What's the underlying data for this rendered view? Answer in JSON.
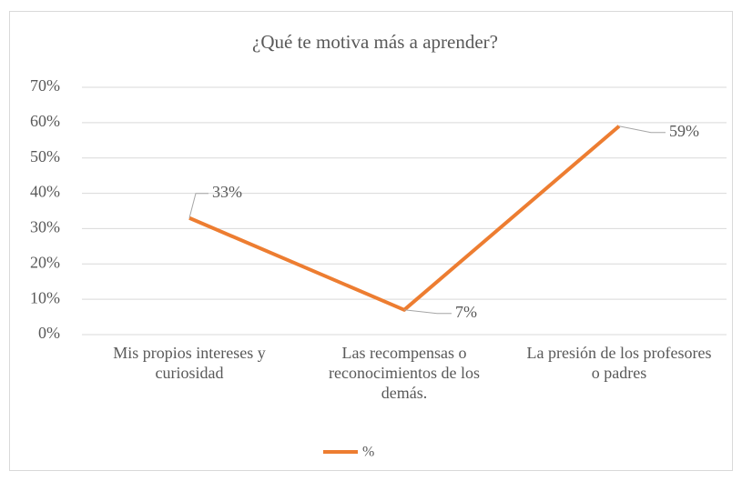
{
  "chart_data": {
    "type": "line",
    "title": "¿Qué te motiva más a aprender?",
    "categories": [
      "Mis propios intereses y curiosidad",
      "Las recompensas o reconocimientos de los demás.",
      "La presión de los profesores o padres"
    ],
    "series": [
      {
        "name": "%",
        "color": "#ed7d31",
        "values": [
          33,
          7,
          59
        ],
        "value_labels": [
          "33%",
          "7%",
          "59%"
        ]
      }
    ],
    "ylim": [
      0,
      70
    ],
    "yticks": [
      {
        "value": 0,
        "label": "0%"
      },
      {
        "value": 10,
        "label": "10%"
      },
      {
        "value": 20,
        "label": "20%"
      },
      {
        "value": 30,
        "label": "30%"
      },
      {
        "value": 40,
        "label": "40%"
      },
      {
        "value": 50,
        "label": "50%"
      },
      {
        "value": 60,
        "label": "60%"
      },
      {
        "value": 70,
        "label": "70%"
      }
    ],
    "grid": true,
    "legend": "bottom"
  }
}
